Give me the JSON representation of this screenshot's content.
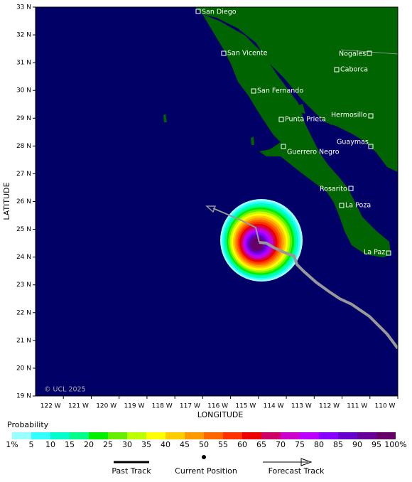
{
  "map": {
    "lat_ticks": [
      "33 N",
      "32 N",
      "31 N",
      "30 N",
      "29 N",
      "28 N",
      "27 N",
      "26 N",
      "25 N",
      "24 N",
      "23 N",
      "22 N",
      "21 N",
      "20 N",
      "19 N"
    ],
    "lon_ticks": [
      "122 W",
      "121 W",
      "120 W",
      "119 W",
      "118 W",
      "117 W",
      "116 W",
      "115 W",
      "114 W",
      "113 W",
      "112 W",
      "111 W",
      "110 W"
    ],
    "y_label": "LATITUDE",
    "x_label": "LONGITUDE",
    "copyright": "© UCL 2025",
    "cities": [
      "San Diego",
      "San Vicente",
      "Nogales",
      "Caborca",
      "San Fernando",
      "Punta Prieta",
      "Hermosillo",
      "Guaymas",
      "Guerrero Negro",
      "Rosarito",
      "La Poza",
      "La Paz"
    ]
  },
  "legend": {
    "title": "Probability",
    "labels": [
      "1%",
      "5",
      "10",
      "15",
      "20",
      "25",
      "30",
      "35",
      "40",
      "45",
      "50",
      "55",
      "60",
      "65",
      "70",
      "75",
      "80",
      "85",
      "90",
      "95",
      "100%"
    ],
    "colors": [
      "#99ffff",
      "#33ffff",
      "#00ffcc",
      "#00ff88",
      "#00ee00",
      "#66ee00",
      "#bbff00",
      "#ffff00",
      "#ffcc00",
      "#ff9900",
      "#ff6600",
      "#ff3300",
      "#ee0000",
      "#cc0066",
      "#cc00cc",
      "#bb00ff",
      "#8800ff",
      "#6600cc",
      "#660099",
      "#660066"
    ],
    "items": [
      "Past Track",
      "Current Position",
      "Forecast Track"
    ]
  }
}
